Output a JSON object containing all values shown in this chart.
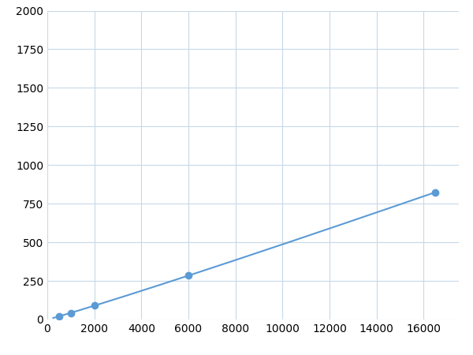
{
  "x": [
    250,
    500,
    1000,
    2000,
    6000,
    16500
  ],
  "y": [
    12,
    22,
    35,
    80,
    255,
    1005
  ],
  "line_color": "#5b9bd5",
  "marker_color": "#5b9bd5",
  "marker_size": 6,
  "xlim": [
    0,
    17500
  ],
  "ylim": [
    0,
    2000
  ],
  "xticks": [
    0,
    2000,
    4000,
    6000,
    8000,
    10000,
    12000,
    14000,
    16000
  ],
  "yticks": [
    0,
    250,
    500,
    750,
    1000,
    1250,
    1500,
    1750,
    2000
  ],
  "grid_color": "#c8d8e8",
  "background_color": "#ffffff",
  "tick_fontsize": 10,
  "figsize": [
    6.0,
    4.5
  ],
  "dpi": 100
}
